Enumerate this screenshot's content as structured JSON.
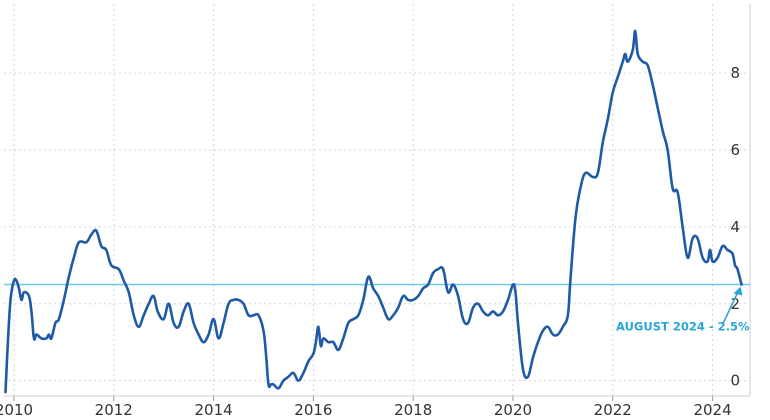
{
  "chart_data": {
    "type": "line",
    "title": "",
    "xlabel": "",
    "ylabel": "",
    "xlim": [
      2009.8,
      2024.75
    ],
    "ylim": [
      -0.4,
      9.8
    ],
    "x_ticks": [
      2010,
      2012,
      2014,
      2016,
      2018,
      2020,
      2022,
      2024
    ],
    "x_tick_labels": [
      "2010",
      "2012",
      "2014",
      "2016",
      "2018",
      "2020",
      "2022",
      "2024"
    ],
    "y_ticks": [
      0,
      2,
      4,
      6,
      8
    ],
    "y_tick_labels": [
      "0",
      "2",
      "4",
      "6",
      "8"
    ],
    "y_axis_side": "right",
    "grid": true,
    "legend": "none",
    "colors": {
      "line": "#1f5aa6",
      "reference": "#6fc8e8",
      "annotation": "#2aa7d6",
      "grid": "#d6d6d6"
    },
    "series": [
      {
        "values": [
          [
            2009.83,
            -0.3
          ],
          [
            2009.87,
            0.8
          ],
          [
            2009.93,
            2.1
          ],
          [
            2010.0,
            2.6
          ],
          [
            2010.05,
            2.6
          ],
          [
            2010.1,
            2.4
          ],
          [
            2010.15,
            2.1
          ],
          [
            2010.2,
            2.3
          ],
          [
            2010.3,
            2.2
          ],
          [
            2010.35,
            1.8
          ],
          [
            2010.4,
            1.1
          ],
          [
            2010.45,
            1.2
          ],
          [
            2010.55,
            1.1
          ],
          [
            2010.65,
            1.1
          ],
          [
            2010.7,
            1.2
          ],
          [
            2010.75,
            1.1
          ],
          [
            2010.83,
            1.5
          ],
          [
            2010.9,
            1.6
          ],
          [
            2011.0,
            2.1
          ],
          [
            2011.1,
            2.7
          ],
          [
            2011.2,
            3.2
          ],
          [
            2011.3,
            3.6
          ],
          [
            2011.45,
            3.6
          ],
          [
            2011.55,
            3.8
          ],
          [
            2011.65,
            3.9
          ],
          [
            2011.75,
            3.5
          ],
          [
            2011.85,
            3.4
          ],
          [
            2011.95,
            3.0
          ],
          [
            2012.1,
            2.9
          ],
          [
            2012.2,
            2.6
          ],
          [
            2012.3,
            2.3
          ],
          [
            2012.4,
            1.7
          ],
          [
            2012.5,
            1.4
          ],
          [
            2012.6,
            1.7
          ],
          [
            2012.7,
            2.0
          ],
          [
            2012.8,
            2.2
          ],
          [
            2012.88,
            1.8
          ],
          [
            2013.0,
            1.6
          ],
          [
            2013.1,
            2.0
          ],
          [
            2013.2,
            1.5
          ],
          [
            2013.3,
            1.4
          ],
          [
            2013.4,
            1.8
          ],
          [
            2013.5,
            2.0
          ],
          [
            2013.6,
            1.5
          ],
          [
            2013.7,
            1.2
          ],
          [
            2013.8,
            1.0
          ],
          [
            2013.9,
            1.2
          ],
          [
            2014.0,
            1.6
          ],
          [
            2014.1,
            1.1
          ],
          [
            2014.2,
            1.5
          ],
          [
            2014.3,
            2.0
          ],
          [
            2014.4,
            2.1
          ],
          [
            2014.5,
            2.1
          ],
          [
            2014.6,
            2.0
          ],
          [
            2014.7,
            1.7
          ],
          [
            2014.8,
            1.7
          ],
          [
            2014.9,
            1.7
          ],
          [
            2015.0,
            1.3
          ],
          [
            2015.05,
            0.7
          ],
          [
            2015.1,
            -0.1
          ],
          [
            2015.15,
            -0.1
          ],
          [
            2015.2,
            -0.1
          ],
          [
            2015.3,
            -0.2
          ],
          [
            2015.4,
            0.0
          ],
          [
            2015.5,
            0.1
          ],
          [
            2015.6,
            0.2
          ],
          [
            2015.7,
            0.0
          ],
          [
            2015.8,
            0.2
          ],
          [
            2015.9,
            0.5
          ],
          [
            2016.0,
            0.7
          ],
          [
            2016.05,
            1.0
          ],
          [
            2016.1,
            1.4
          ],
          [
            2016.15,
            0.9
          ],
          [
            2016.2,
            1.1
          ],
          [
            2016.3,
            1.0
          ],
          [
            2016.4,
            1.0
          ],
          [
            2016.5,
            0.8
          ],
          [
            2016.6,
            1.1
          ],
          [
            2016.7,
            1.5
          ],
          [
            2016.8,
            1.6
          ],
          [
            2016.9,
            1.7
          ],
          [
            2017.0,
            2.1
          ],
          [
            2017.1,
            2.7
          ],
          [
            2017.2,
            2.4
          ],
          [
            2017.3,
            2.2
          ],
          [
            2017.4,
            1.9
          ],
          [
            2017.5,
            1.6
          ],
          [
            2017.6,
            1.7
          ],
          [
            2017.7,
            1.9
          ],
          [
            2017.8,
            2.2
          ],
          [
            2017.9,
            2.1
          ],
          [
            2018.0,
            2.1
          ],
          [
            2018.1,
            2.2
          ],
          [
            2018.2,
            2.4
          ],
          [
            2018.3,
            2.5
          ],
          [
            2018.4,
            2.8
          ],
          [
            2018.5,
            2.9
          ],
          [
            2018.6,
            2.9
          ],
          [
            2018.7,
            2.3
          ],
          [
            2018.8,
            2.5
          ],
          [
            2018.9,
            2.2
          ],
          [
            2019.0,
            1.6
          ],
          [
            2019.1,
            1.5
          ],
          [
            2019.2,
            1.9
          ],
          [
            2019.3,
            2.0
          ],
          [
            2019.4,
            1.8
          ],
          [
            2019.5,
            1.7
          ],
          [
            2019.6,
            1.8
          ],
          [
            2019.7,
            1.7
          ],
          [
            2019.8,
            1.8
          ],
          [
            2019.9,
            2.1
          ],
          [
            2020.0,
            2.5
          ],
          [
            2020.05,
            2.3
          ],
          [
            2020.1,
            1.5
          ],
          [
            2020.2,
            0.3
          ],
          [
            2020.3,
            0.1
          ],
          [
            2020.4,
            0.6
          ],
          [
            2020.5,
            1.0
          ],
          [
            2020.6,
            1.3
          ],
          [
            2020.7,
            1.4
          ],
          [
            2020.8,
            1.2
          ],
          [
            2020.9,
            1.2
          ],
          [
            2021.0,
            1.4
          ],
          [
            2021.1,
            1.7
          ],
          [
            2021.15,
            2.6
          ],
          [
            2021.25,
            4.2
          ],
          [
            2021.35,
            5.0
          ],
          [
            2021.45,
            5.4
          ],
          [
            2021.6,
            5.3
          ],
          [
            2021.7,
            5.4
          ],
          [
            2021.8,
            6.2
          ],
          [
            2021.9,
            6.8
          ],
          [
            2022.0,
            7.5
          ],
          [
            2022.1,
            7.9
          ],
          [
            2022.2,
            8.3
          ],
          [
            2022.25,
            8.5
          ],
          [
            2022.3,
            8.3
          ],
          [
            2022.4,
            8.6
          ],
          [
            2022.45,
            9.1
          ],
          [
            2022.5,
            8.5
          ],
          [
            2022.6,
            8.3
          ],
          [
            2022.7,
            8.2
          ],
          [
            2022.8,
            7.7
          ],
          [
            2022.9,
            7.1
          ],
          [
            2023.0,
            6.5
          ],
          [
            2023.1,
            6.0
          ],
          [
            2023.2,
            5.0
          ],
          [
            2023.3,
            4.9
          ],
          [
            2023.4,
            4.0
          ],
          [
            2023.5,
            3.2
          ],
          [
            2023.6,
            3.7
          ],
          [
            2023.7,
            3.7
          ],
          [
            2023.8,
            3.2
          ],
          [
            2023.9,
            3.1
          ],
          [
            2023.95,
            3.4
          ],
          [
            2024.0,
            3.1
          ],
          [
            2024.1,
            3.2
          ],
          [
            2024.2,
            3.5
          ],
          [
            2024.3,
            3.4
          ],
          [
            2024.4,
            3.3
          ],
          [
            2024.45,
            3.0
          ],
          [
            2024.5,
            2.9
          ],
          [
            2024.58,
            2.5
          ]
        ]
      }
    ],
    "reference_line": {
      "y": 2.5
    },
    "annotation": {
      "text": "AUGUST 2024 - 2.5%",
      "x": 2024.58,
      "y": 2.5
    }
  }
}
